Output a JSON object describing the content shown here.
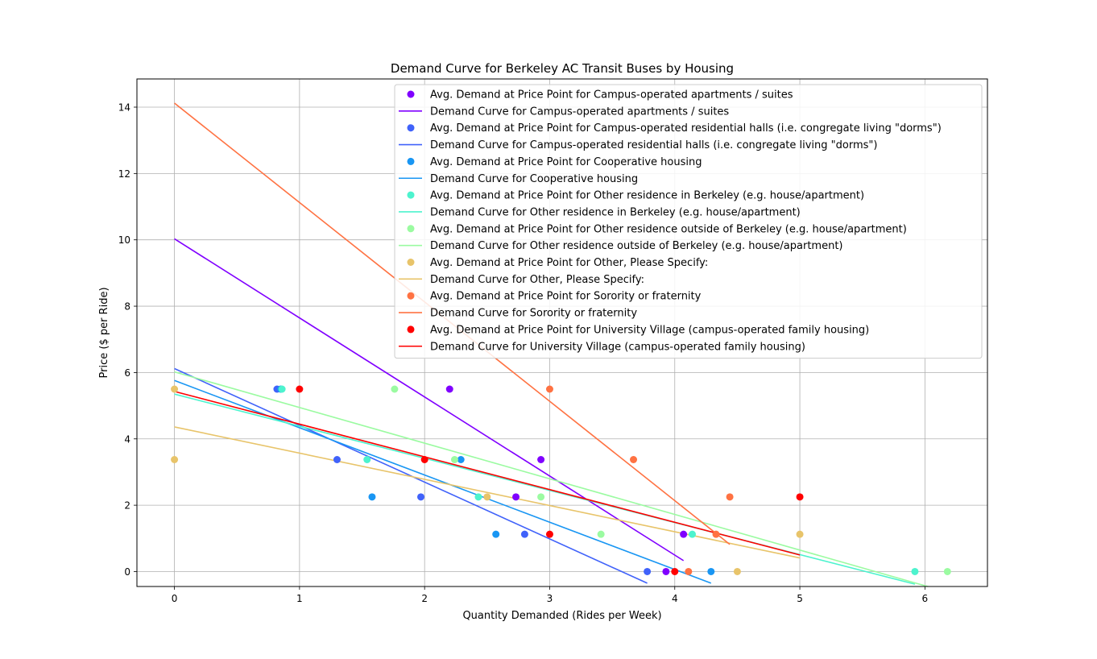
{
  "chart_data": {
    "type": "scatter",
    "title": "Demand Curve for Berkeley AC Transit Buses by Housing",
    "xlabel": "Quantity Demanded (Rides per Week)",
    "ylabel": "Price ($ per Ride)",
    "xlim": [
      -0.3,
      6.5
    ],
    "ylim": [
      -0.45,
      14.85
    ],
    "xticks": [
      0,
      1,
      2,
      3,
      4,
      5,
      6
    ],
    "yticks": [
      0,
      2,
      4,
      6,
      8,
      10,
      12,
      14
    ],
    "grid": true,
    "legend_position": "top-right",
    "series": [
      {
        "name": "Campus-operated apartments / suites",
        "color": "#8000ff",
        "points_label": "Avg. Demand at Price Point for Campus-operated apartments / suites",
        "line_label": "Demand Curve for Campus-operated apartments / suites",
        "points": [
          [
            3.93,
            0
          ],
          [
            4.07,
            1.125
          ],
          [
            2.73,
            2.25
          ],
          [
            2.93,
            3.375
          ],
          [
            2.2,
            5.5
          ]
        ],
        "line": [
          [
            0,
            10.03
          ],
          [
            4.07,
            0.33
          ]
        ]
      },
      {
        "name": "Campus-operated residential halls (i.e. congregate living \"dorms\")",
        "color": "#4062fa",
        "points_label": "Avg. Demand at Price Point for Campus-operated residential halls (i.e. congregate living \"dorms\")",
        "line_label": "Demand Curve for Campus-operated residential halls (i.e. congregate living \"dorms\")",
        "points": [
          [
            3.78,
            0
          ],
          [
            2.8,
            1.125
          ],
          [
            1.97,
            2.25
          ],
          [
            1.3,
            3.375
          ],
          [
            0.82,
            5.5
          ]
        ],
        "line": [
          [
            0,
            6.12
          ],
          [
            3.78,
            -0.35
          ]
        ]
      },
      {
        "name": "Cooperative housing",
        "color": "#1996f3",
        "points_label": "Avg. Demand at Price Point for Cooperative housing",
        "line_label": "Demand Curve for Cooperative housing",
        "points": [
          [
            4.29,
            0
          ],
          [
            2.57,
            1.125
          ],
          [
            1.58,
            2.25
          ],
          [
            2.29,
            3.375
          ],
          [
            0.85,
            5.5
          ]
        ],
        "line": [
          [
            0,
            5.76
          ],
          [
            4.29,
            -0.35
          ]
        ]
      },
      {
        "name": "Other residence in Berkeley (e.g. house/apartment)",
        "color": "#4df3ce",
        "points_label": "Avg. Demand at Price Point for Other residence in Berkeley (e.g. house/apartment)",
        "line_label": "Demand Curve for Other residence in Berkeley (e.g. house/apartment)",
        "points": [
          [
            5.92,
            0
          ],
          [
            4.14,
            1.125
          ],
          [
            2.43,
            2.25
          ],
          [
            1.54,
            3.375
          ],
          [
            0.86,
            5.5
          ]
        ],
        "line": [
          [
            0,
            5.35
          ],
          [
            5.92,
            -0.38
          ]
        ]
      },
      {
        "name": "Other residence outside of Berkeley (e.g. house/apartment)",
        "color": "#9bfba1",
        "points_label": "Avg. Demand at Price Point for Other residence outside of Berkeley (e.g. house/apartment)",
        "line_label": "Demand Curve for Other residence outside of Berkeley (e.g. house/apartment)",
        "points": [
          [
            6.18,
            0
          ],
          [
            3.41,
            1.125
          ],
          [
            2.93,
            2.25
          ],
          [
            2.24,
            3.375
          ],
          [
            1.76,
            5.5
          ]
        ],
        "line": [
          [
            0,
            6.02
          ],
          [
            6.18,
            -0.62
          ]
        ]
      },
      {
        "name": "Other, Please Specify:",
        "color": "#e8c46a",
        "points_label": "Avg. Demand at Price Point for Other, Please Specify:",
        "line_label": "Demand Curve for Other, Please Specify:",
        "points": [
          [
            4.5,
            0
          ],
          [
            5.0,
            1.125
          ],
          [
            2.5,
            2.25
          ],
          [
            0,
            3.375
          ],
          [
            0,
            5.5
          ]
        ],
        "line": [
          [
            0,
            4.36
          ],
          [
            5.0,
            0.41
          ]
        ]
      },
      {
        "name": "Sorority or fraternity",
        "color": "#ff7242",
        "points_label": "Avg. Demand at Price Point for Sorority or fraternity",
        "line_label": "Demand Curve for Sorority or fraternity",
        "points": [
          [
            4.11,
            0
          ],
          [
            4.33,
            1.125
          ],
          [
            4.44,
            2.25
          ],
          [
            3.67,
            3.375
          ],
          [
            3.0,
            5.5
          ]
        ],
        "line": [
          [
            0,
            14.12
          ],
          [
            4.44,
            0.82
          ]
        ]
      },
      {
        "name": "University Village (campus-operated family housing)",
        "color": "#ff0000",
        "points_label": "Avg. Demand at Price Point for University Village (campus-operated family housing)",
        "line_label": "Demand Curve for University Village (campus-operated family housing)",
        "points": [
          [
            4.0,
            0
          ],
          [
            3.0,
            1.125
          ],
          [
            5.0,
            2.25
          ],
          [
            2.0,
            3.375
          ],
          [
            1.0,
            5.5
          ]
        ],
        "line": [
          [
            0,
            5.43
          ],
          [
            5.0,
            0.5
          ]
        ]
      }
    ]
  }
}
